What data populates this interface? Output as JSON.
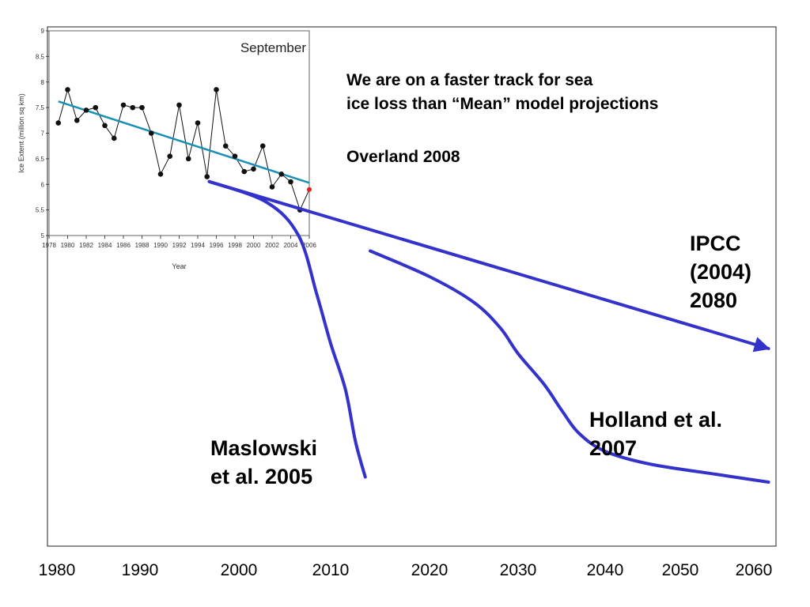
{
  "heading": {
    "line1": "We are on a faster track for sea",
    "line2": "ice loss than “Mean” model projections"
  },
  "citation": "Overland 2008",
  "colors": {
    "projection": "#3333cc",
    "trend": "#1a8fb5",
    "observed": "#111111",
    "latest_point": "#e02020"
  },
  "x_axis": {
    "ticks": [
      "1980",
      "1990",
      "2000",
      "2010",
      "2020",
      "2030",
      "2040",
      "2050",
      "2060"
    ]
  },
  "labels": {
    "ipcc": {
      "line1": "IPCC",
      "line2": "(2004)",
      "line3": "2080"
    },
    "holland": {
      "line1": "Holland et al.",
      "line2": "2007"
    },
    "maslowski": {
      "line1": "Maslowski",
      "line2": "et al. 2005"
    }
  },
  "chart_data": [
    {
      "type": "line",
      "title": "September",
      "xlabel": "Year",
      "ylabel": "Ice Extent (million sq km)",
      "xlim": [
        1978,
        2006
      ],
      "ylim": [
        5,
        9
      ],
      "grid": false,
      "yticks": [
        "5",
        "5.5",
        "6",
        "6.5",
        "7",
        "7.5",
        "8",
        "8.5",
        "9"
      ],
      "xticks": [
        "1978",
        "1980",
        "1982",
        "1984",
        "1986",
        "1988",
        "1990",
        "1992",
        "1994",
        "1996",
        "1998",
        "2000",
        "2002",
        "2004",
        "2006"
      ],
      "x": [
        1979,
        1980,
        1981,
        1982,
        1983,
        1984,
        1985,
        1986,
        1987,
        1988,
        1989,
        1990,
        1991,
        1992,
        1993,
        1994,
        1995,
        1996,
        1997,
        1998,
        1999,
        2000,
        2001,
        2002,
        2003,
        2004,
        2005,
        2006
      ],
      "series": [
        {
          "values": [
            7.2,
            7.85,
            7.25,
            7.45,
            7.5,
            7.15,
            6.9,
            7.55,
            7.5,
            7.5,
            7.0,
            6.2,
            6.55,
            7.55,
            6.5,
            7.2,
            6.15,
            7.85,
            6.75,
            6.55,
            6.25,
            6.3,
            6.75,
            5.95,
            6.2,
            6.05,
            5.5,
            5.9
          ]
        }
      ],
      "trend": {
        "start": [
          1979,
          7.62
        ],
        "end": [
          2006,
          6.03
        ]
      },
      "highlight_last_point": true
    },
    {
      "type": "line",
      "xlim": [
        1978,
        2062
      ],
      "xticks": [
        1980,
        1990,
        2000,
        2010,
        2020,
        2030,
        2040,
        2050,
        2060
      ],
      "series": [
        {
          "name": "IPCC (2004) 2080",
          "x": [
            1997,
            2062
          ],
          "y": [
            6.05,
            2.8
          ],
          "arrow": true
        },
        {
          "name": "Maslowski et al. 2005",
          "x": [
            1997,
            2003,
            2006.5,
            2008.5,
            2010,
            2011.5,
            2012.5,
            2013.5
          ],
          "y": [
            6.05,
            5.65,
            5.0,
            3.85,
            2.9,
            2.0,
            1.0,
            0.3
          ]
        },
        {
          "name": "Holland et al. 2007",
          "x": [
            2014,
            2020,
            2025,
            2028,
            2030,
            2033,
            2035,
            2037,
            2040,
            2046,
            2055,
            2062
          ],
          "y": [
            4.7,
            4.2,
            3.7,
            3.2,
            2.7,
            2.1,
            1.6,
            1.15,
            0.8,
            0.55,
            0.35,
            0.2
          ]
        }
      ]
    }
  ]
}
